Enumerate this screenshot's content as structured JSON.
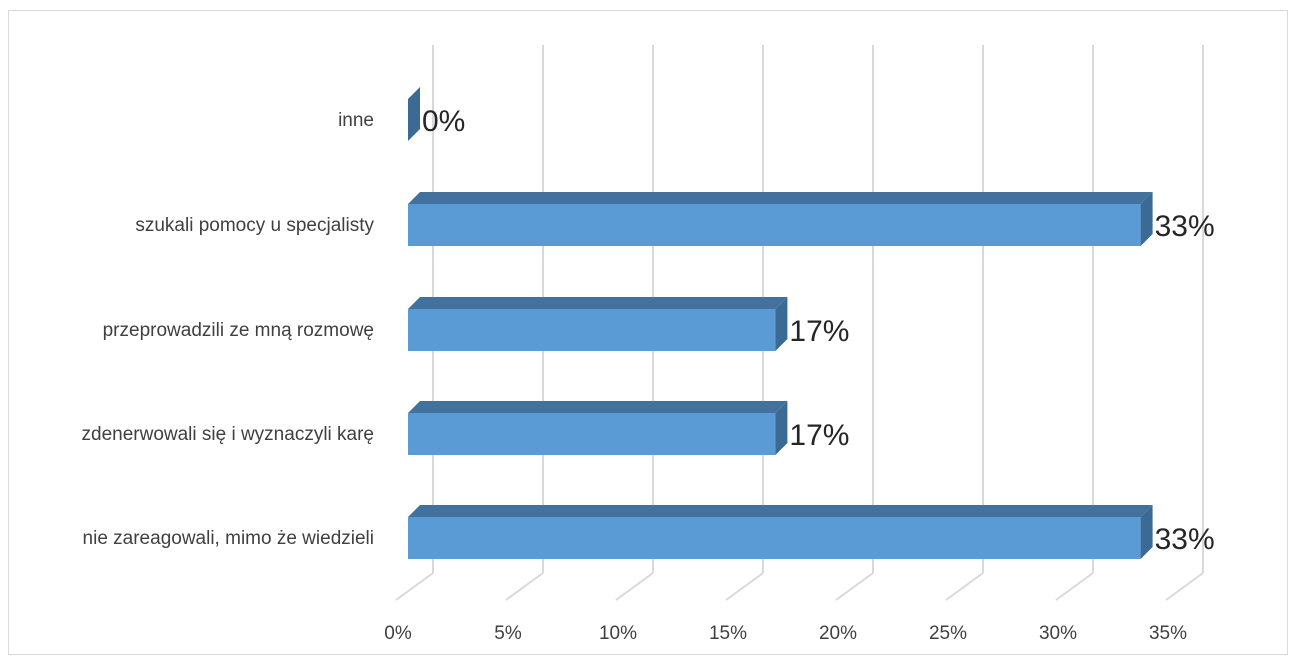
{
  "chart_data": {
    "type": "bar",
    "orientation": "horizontal",
    "style": "3d-clustered-bar",
    "categories": [
      "inne",
      "szukali pomocy u specjalisty",
      "przeprowadzili ze mną rozmowę",
      "zdenerwowali się i wyznaczyli karę",
      "nie zareagowali, mimo że wiedzieli"
    ],
    "values": [
      0,
      33.3,
      16.7,
      16.7,
      33.3
    ],
    "data_labels": [
      "0%",
      "33%",
      "17%",
      "17%",
      "33%"
    ],
    "x_ticks": [
      "0%",
      "5%",
      "10%",
      "15%",
      "20%",
      "25%",
      "30%",
      "35%"
    ],
    "xlim": [
      0,
      35
    ],
    "grid": "vertical",
    "legend": "none",
    "colors": {
      "bar_front": "#5b9bd5",
      "bar_top": "#41719c",
      "bar_side": "#3b6a94",
      "gridline": "#d9d9d9",
      "text": "#404040"
    }
  }
}
